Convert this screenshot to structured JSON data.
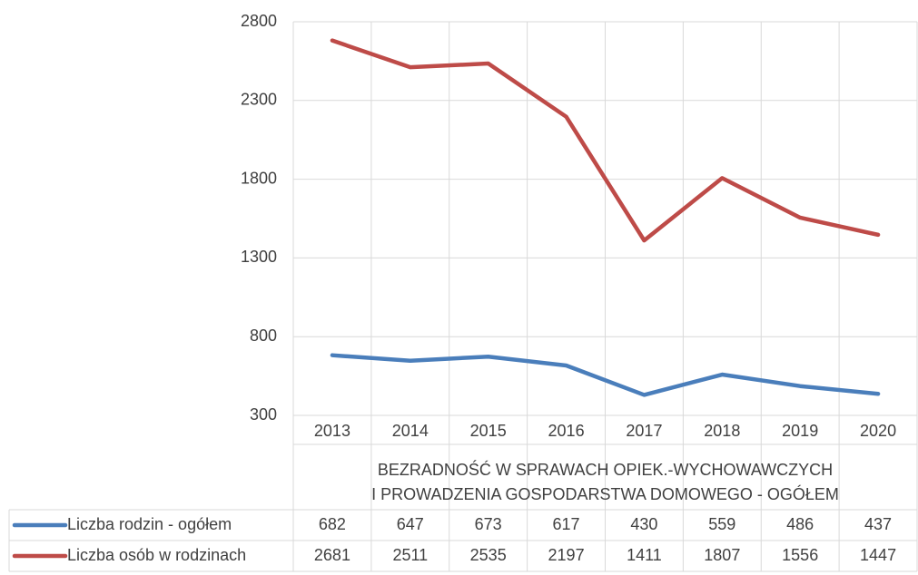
{
  "chart_data": {
    "type": "line",
    "x_axis_title": [
      "BEZRADNOŚĆ W SPRAWACH OPIEK.-WYCHOWAWCZYCH",
      "I PROWADZENIA GOSPODARSTWA DOMOWEGO - OGÓŁEM"
    ],
    "categories": [
      "2013",
      "2014",
      "2015",
      "2016",
      "2017",
      "2018",
      "2019",
      "2020"
    ],
    "series": [
      {
        "name": "Liczba rodzin - ogółem",
        "color": "#4a7ebb",
        "values": [
          682,
          647,
          673,
          617,
          430,
          559,
          486,
          437
        ]
      },
      {
        "name": "Liczba osób w rodzinach",
        "color": "#be4b48",
        "values": [
          2681,
          2511,
          2535,
          2197,
          1411,
          1807,
          1556,
          1447
        ]
      }
    ],
    "ylim": [
      300,
      2800
    ],
    "yticks": [
      300,
      800,
      1300,
      1800,
      2300,
      2800
    ],
    "grid": true,
    "data_table": true
  }
}
